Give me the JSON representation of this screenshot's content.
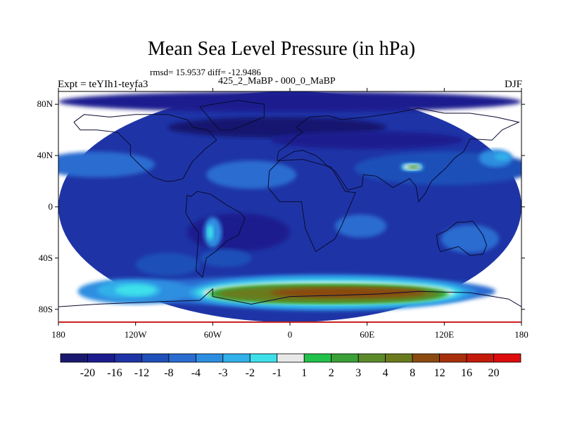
{
  "title": "Mean Sea Level Pressure (in hPa)",
  "stats": "rmsd= 15.9537 diff= -12.9486",
  "left_label": "Expt = teYIh1-teyfa3",
  "center_label": "425_2_MaBP - 000_0_MaBP",
  "right_label": "DJF",
  "chart_data": {
    "type": "heatmap",
    "title": "Mean Sea Level Pressure (in hPa)",
    "x_ticks": [
      {
        "value": -180,
        "label": "180"
      },
      {
        "value": -120,
        "label": "120W"
      },
      {
        "value": -60,
        "label": "60W"
      },
      {
        "value": 0,
        "label": "0"
      },
      {
        "value": 60,
        "label": "60E"
      },
      {
        "value": 120,
        "label": "120E"
      },
      {
        "value": 180,
        "label": "180"
      }
    ],
    "y_ticks": [
      {
        "value": 80,
        "label": "80N"
      },
      {
        "value": 40,
        "label": "40N"
      },
      {
        "value": 0,
        "label": "0"
      },
      {
        "value": -40,
        "label": "40S"
      },
      {
        "value": -80,
        "label": "80S"
      }
    ],
    "xlim": [
      -180,
      180
    ],
    "ylim": [
      -90,
      90
    ],
    "colorbar": {
      "levels": [
        "-20",
        "-16",
        "-12",
        "-8",
        "-4",
        "-3",
        "-2",
        "-1",
        "1",
        "2",
        "3",
        "4",
        "8",
        "12",
        "16",
        "20"
      ],
      "colors": [
        "#191970",
        "#1c1c8f",
        "#1e34a6",
        "#1f4fb8",
        "#2a6cd0",
        "#2d8ee0",
        "#31b0ea",
        "#3ee0ea",
        "#e8e8e8",
        "#22c24a",
        "#3ba038",
        "#5c8a2a",
        "#6b7a1c",
        "#8b4a10",
        "#a8300c",
        "#c41a0a",
        "#de0c0c"
      ]
    },
    "fields": [
      {
        "lon": 0,
        "lat": 0,
        "w": 360,
        "h": 180,
        "color": "#1e34a6"
      },
      {
        "lon": 0,
        "lat": 82,
        "w": 360,
        "h": 16,
        "color": "#1c1c8f"
      },
      {
        "lon": -10,
        "lat": 62,
        "w": 170,
        "h": 16,
        "color": "#191970"
      },
      {
        "lon": 60,
        "lat": 52,
        "w": 150,
        "h": 14,
        "color": "#1c1c8f"
      },
      {
        "lon": -150,
        "lat": 33,
        "w": 90,
        "h": 20,
        "color": "#2a6cd0"
      },
      {
        "lon": -30,
        "lat": 25,
        "w": 70,
        "h": 22,
        "color": "#2a6cd0"
      },
      {
        "lon": 120,
        "lat": 30,
        "w": 140,
        "h": 26,
        "color": "#1f4fb8"
      },
      {
        "lon": 160,
        "lat": 38,
        "w": 26,
        "h": 14,
        "color": "#2d8ee0"
      },
      {
        "lon": 165,
        "lat": 39,
        "w": 12,
        "h": 6,
        "color": "#31b0ea"
      },
      {
        "lon": -40,
        "lat": -20,
        "w": 80,
        "h": 30,
        "color": "#1c1c8f"
      },
      {
        "lon": -95,
        "lat": -45,
        "w": 50,
        "h": 18,
        "color": "#1f4fb8"
      },
      {
        "lon": 55,
        "lat": -15,
        "w": 40,
        "h": 18,
        "color": "#2a6cd0"
      },
      {
        "lon": 140,
        "lat": -25,
        "w": 45,
        "h": 22,
        "color": "#2a6cd0"
      },
      {
        "lon": -60,
        "lat": -20,
        "w": 14,
        "h": 24,
        "color": "#2d8ee0"
      },
      {
        "lon": -62,
        "lat": -20,
        "w": 5,
        "h": 12,
        "color": "#3ee0ea"
      },
      {
        "lon": -50,
        "lat": -40,
        "w": 40,
        "h": 14,
        "color": "#1f4fb8"
      },
      {
        "lon": 10,
        "lat": -66,
        "w": 300,
        "h": 24,
        "color": "#2a6cd0"
      },
      {
        "lon": -120,
        "lat": -66,
        "w": 90,
        "h": 20,
        "color": "#2d8ee0"
      },
      {
        "lon": -125,
        "lat": -65,
        "w": 50,
        "h": 14,
        "color": "#31b0ea"
      },
      {
        "lon": -120,
        "lat": -65,
        "w": 32,
        "h": 9,
        "color": "#3ee0ea"
      },
      {
        "lon": 30,
        "lat": -67,
        "w": 230,
        "h": 28,
        "color": "#2d8ee0"
      },
      {
        "lon": 30,
        "lat": -67,
        "w": 216,
        "h": 24,
        "color": "#31b0ea"
      },
      {
        "lon": 30,
        "lat": -67,
        "w": 206,
        "h": 20,
        "color": "#3ee0ea"
      },
      {
        "lon": 30,
        "lat": -67,
        "w": 196,
        "h": 17,
        "color": "#e8e8e8"
      },
      {
        "lon": 30,
        "lat": -68,
        "w": 188,
        "h": 15,
        "color": "#22c24a"
      },
      {
        "lon": 30,
        "lat": -68,
        "w": 182,
        "h": 14,
        "color": "#3ba038"
      },
      {
        "lon": 30,
        "lat": -68,
        "w": 176,
        "h": 13,
        "color": "#5c8a2a"
      },
      {
        "lon": 30,
        "lat": -68,
        "w": 166,
        "h": 11,
        "color": "#6b7a1c"
      },
      {
        "lon": 45,
        "lat": -67,
        "w": 120,
        "h": 8,
        "color": "#8b4a10"
      },
      {
        "lon": 95,
        "lat": 31,
        "w": 18,
        "h": 7,
        "color": "#31b0ea"
      },
      {
        "lon": 95,
        "lat": 31,
        "w": 14,
        "h": 5,
        "color": "#e8e8e8"
      },
      {
        "lon": 96,
        "lat": 31,
        "w": 9,
        "h": 3,
        "color": "#3ba038"
      }
    ],
    "coastlines": [
      [
        [
          -168,
          66
        ],
        [
          -160,
          72
        ],
        [
          -140,
          70
        ],
        [
          -120,
          72
        ],
        [
          -95,
          72
        ],
        [
          -80,
          68
        ],
        [
          -75,
          62
        ],
        [
          -64,
          60
        ],
        [
          -57,
          52
        ],
        [
          -66,
          45
        ],
        [
          -76,
          35
        ],
        [
          -81,
          26
        ],
        [
          -83,
          22
        ],
        [
          -91,
          20
        ],
        [
          -97,
          20
        ],
        [
          -106,
          23
        ],
        [
          -115,
          31
        ],
        [
          -124,
          40
        ],
        [
          -124,
          48
        ],
        [
          -134,
          58
        ],
        [
          -150,
          60
        ],
        [
          -163,
          60
        ],
        [
          -168,
          66
        ]
      ],
      [
        [
          -80,
          9
        ],
        [
          -77,
          8
        ],
        [
          -72,
          12
        ],
        [
          -62,
          10
        ],
        [
          -50,
          2
        ],
        [
          -38,
          -5
        ],
        [
          -35,
          -9
        ],
        [
          -40,
          -22
        ],
        [
          -48,
          -26
        ],
        [
          -58,
          -35
        ],
        [
          -65,
          -40
        ],
        [
          -68,
          -55
        ],
        [
          -73,
          -50
        ],
        [
          -72,
          -35
        ],
        [
          -71,
          -20
        ],
        [
          -75,
          -15
        ],
        [
          -81,
          -5
        ],
        [
          -80,
          9
        ]
      ],
      [
        [
          -17,
          15
        ],
        [
          -16,
          28
        ],
        [
          -8,
          36
        ],
        [
          10,
          37
        ],
        [
          32,
          31
        ],
        [
          43,
          12
        ],
        [
          51,
          11
        ],
        [
          40,
          -15
        ],
        [
          35,
          -25
        ],
        [
          20,
          -35
        ],
        [
          12,
          -17
        ],
        [
          9,
          4
        ],
        [
          -8,
          4
        ],
        [
          -17,
          15
        ]
      ],
      [
        [
          -10,
          36
        ],
        [
          -9,
          43
        ],
        [
          -2,
          48
        ],
        [
          5,
          55
        ],
        [
          10,
          58
        ],
        [
          5,
          62
        ],
        [
          15,
          70
        ],
        [
          30,
          71
        ],
        [
          40,
          68
        ],
        [
          60,
          70
        ],
        [
          80,
          73
        ],
        [
          100,
          77
        ],
        [
          120,
          73
        ],
        [
          140,
          73
        ],
        [
          160,
          70
        ],
        [
          178,
          66
        ],
        [
          165,
          60
        ],
        [
          157,
          52
        ],
        [
          140,
          53
        ],
        [
          135,
          43
        ],
        [
          128,
          38
        ],
        [
          121,
          30
        ],
        [
          110,
          20
        ],
        [
          105,
          10
        ],
        [
          100,
          4
        ],
        [
          98,
          16
        ],
        [
          93,
          22
        ],
        [
          80,
          15
        ],
        [
          73,
          20
        ],
        [
          67,
          24
        ],
        [
          57,
          25
        ],
        [
          56,
          16
        ],
        [
          45,
          13
        ],
        [
          35,
          28
        ],
        [
          30,
          31
        ],
        [
          25,
          36
        ],
        [
          20,
          40
        ],
        [
          15,
          42
        ],
        [
          10,
          44
        ],
        [
          3,
          43
        ],
        [
          -9,
          36
        ],
        [
          -10,
          36
        ]
      ],
      [
        [
          114,
          -22
        ],
        [
          121,
          -19
        ],
        [
          130,
          -12
        ],
        [
          137,
          -12
        ],
        [
          142,
          -11
        ],
        [
          145,
          -15
        ],
        [
          150,
          -22
        ],
        [
          153,
          -30
        ],
        [
          150,
          -37
        ],
        [
          140,
          -38
        ],
        [
          131,
          -31
        ],
        [
          117,
          -35
        ],
        [
          115,
          -30
        ],
        [
          114,
          -22
        ]
      ],
      [
        [
          -180,
          -78
        ],
        [
          -150,
          -76
        ],
        [
          -100,
          -74
        ],
        [
          -70,
          -73
        ],
        [
          -60,
          -64
        ],
        [
          -60,
          -70
        ],
        [
          -30,
          -76
        ],
        [
          0,
          -70
        ],
        [
          40,
          -69
        ],
        [
          70,
          -68
        ],
        [
          100,
          -66
        ],
        [
          140,
          -67
        ],
        [
          170,
          -72
        ],
        [
          180,
          -78
        ]
      ],
      [
        [
          -55,
          60
        ],
        [
          -45,
          60
        ],
        [
          -20,
          70
        ],
        [
          -20,
          80
        ],
        [
          -40,
          83
        ],
        [
          -60,
          80
        ],
        [
          -70,
          78
        ],
        [
          -55,
          60
        ]
      ]
    ]
  }
}
